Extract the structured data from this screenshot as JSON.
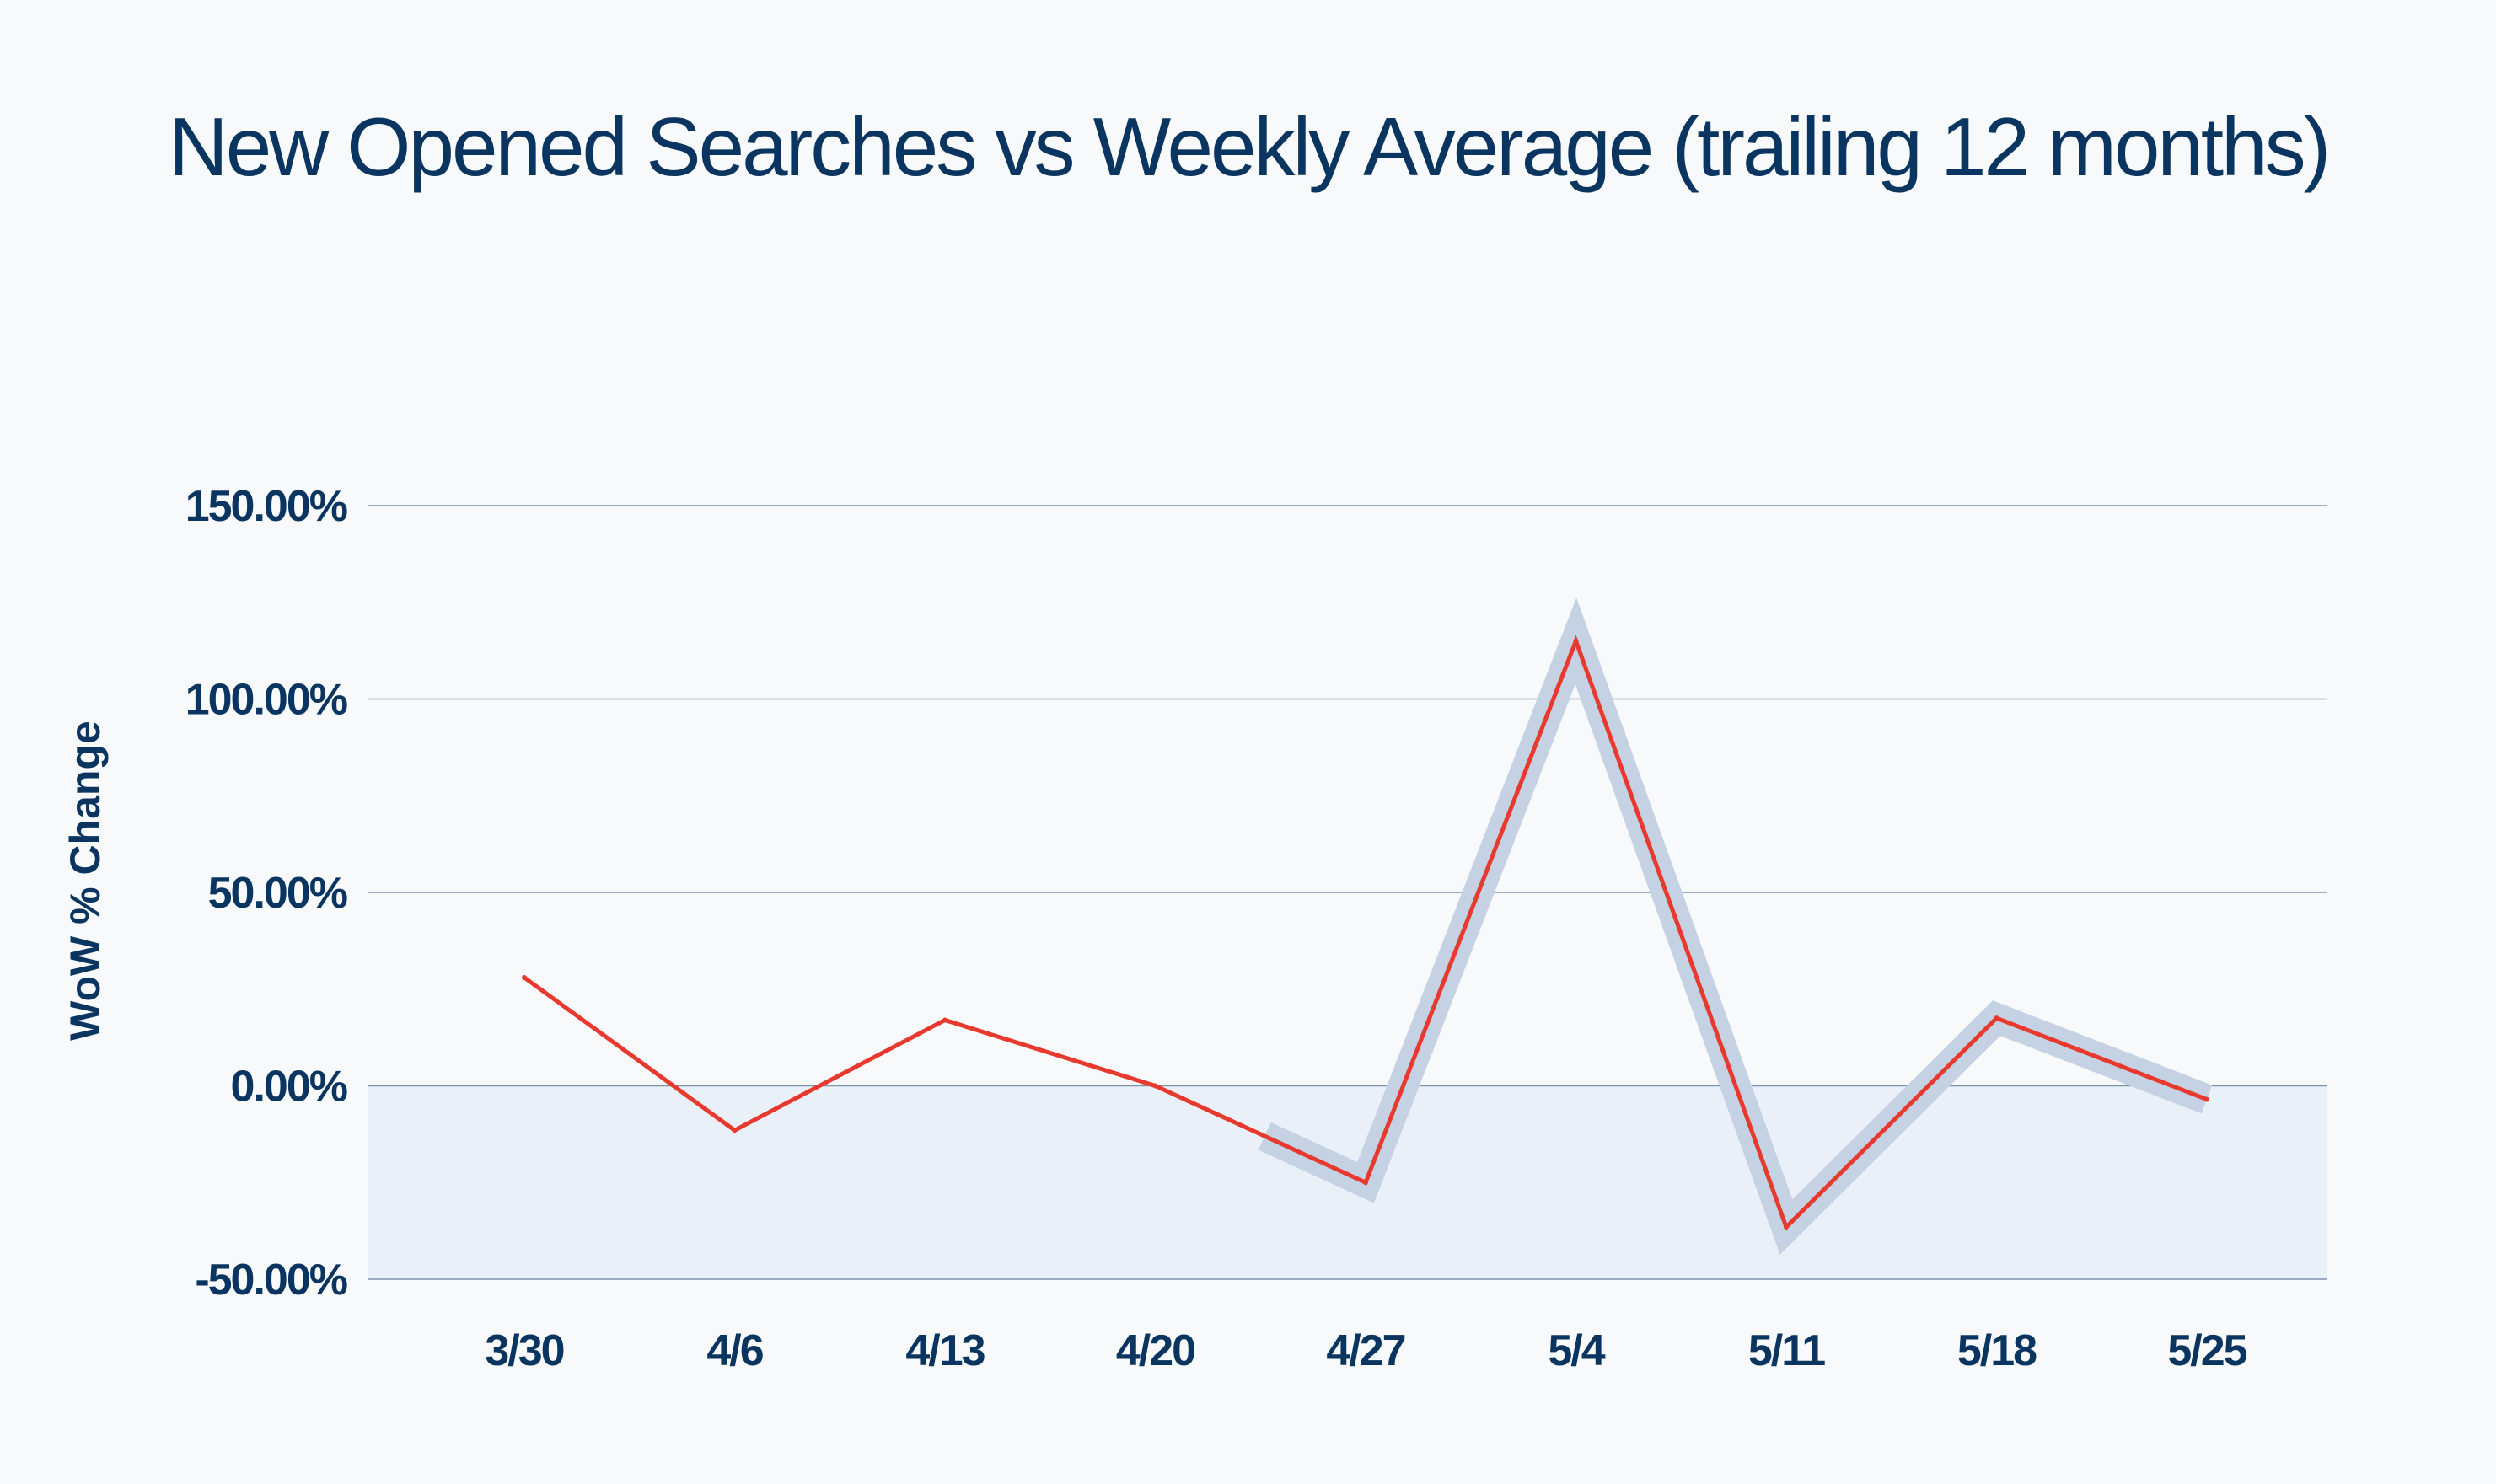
{
  "chart_data": {
    "type": "line",
    "title": "New Opened Searches vs Weekly Average (trailing 12 months)",
    "xlabel": "",
    "ylabel": "WoW % Change",
    "categories": [
      "3/30",
      "4/6",
      "4/13",
      "4/20",
      "4/27",
      "5/4",
      "5/11",
      "5/18",
      "5/25"
    ],
    "series": [
      {
        "values": [
          28,
          -11.5,
          17,
          0,
          -25,
          115,
          -36.5,
          17.5,
          -3.5
        ]
      }
    ],
    "highlight_range": {
      "from_category": "4/27",
      "to_category": "5/25"
    },
    "ylim": [
      -50,
      150
    ],
    "yticks": [
      150,
      100,
      50,
      0,
      -50
    ],
    "ytick_labels": [
      "150.00%",
      "100.00%",
      "50.00%",
      "0.00%",
      "-50.00%"
    ],
    "negative_region_shaded": true,
    "grid": true,
    "legend": "none",
    "colors": {
      "line": "#e8392e",
      "highlight": "#c5d2e4",
      "grid": "#7c93b0",
      "negative_fill": "#eaf0f8",
      "text": "#0b3561",
      "background": "#f8f9fb"
    }
  }
}
